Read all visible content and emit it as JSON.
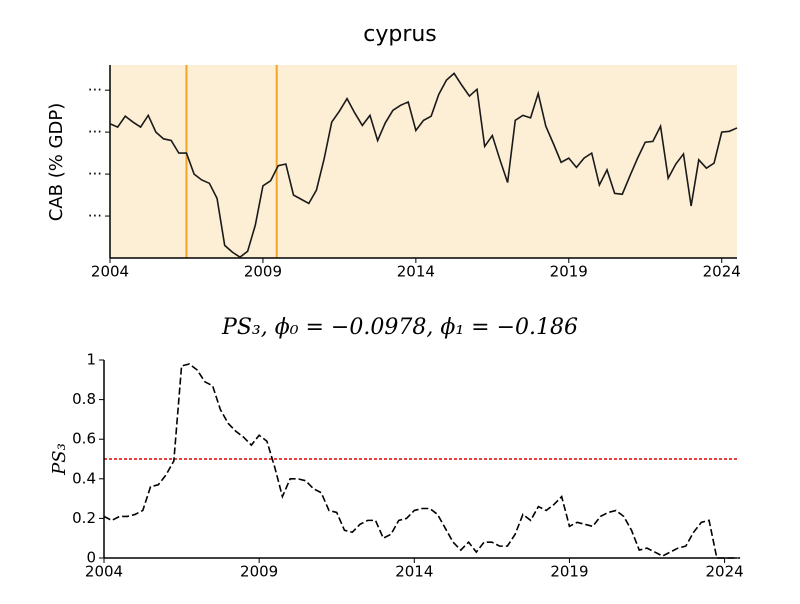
{
  "chart_data": [
    {
      "type": "line",
      "title": "cyprus",
      "ylabel": "CAB (% GDP)",
      "background": "#fdefd5",
      "x": [
        2004,
        2004.25,
        2004.5,
        2004.75,
        2005,
        2005.25,
        2005.5,
        2005.75,
        2006,
        2006.25,
        2006.5,
        2006.75,
        2007,
        2007.25,
        2007.5,
        2007.75,
        2008,
        2008.25,
        2008.5,
        2008.75,
        2009,
        2009.25,
        2009.5,
        2009.75,
        2010,
        2010.25,
        2010.5,
        2010.75,
        2011,
        2011.25,
        2011.5,
        2011.75,
        2012,
        2012.25,
        2012.5,
        2012.75,
        2013,
        2013.25,
        2013.5,
        2013.75,
        2014,
        2014.25,
        2014.5,
        2014.75,
        2015,
        2015.25,
        2015.5,
        2015.75,
        2016,
        2016.25,
        2016.5,
        2016.75,
        2017,
        2017.25,
        2017.5,
        2017.75,
        2018,
        2018.25,
        2018.5,
        2018.75,
        2019,
        2019.25,
        2019.5,
        2019.75,
        2020,
        2020.25,
        2020.5,
        2020.75,
        2021,
        2021.25,
        2021.5,
        2021.75,
        2022,
        2022.25,
        2022.5,
        2022.75,
        2023,
        2023.25,
        2023.5,
        2023.75,
        2024,
        2024.25,
        2024.5
      ],
      "series": [
        {
          "color": "#1a1a1a",
          "linestyle": "solid",
          "values": [
            -4.0,
            -4.4,
            -3.1,
            -3.8,
            -4.4,
            -3.0,
            -5.0,
            -5.8,
            -6.0,
            -7.5,
            -7.5,
            -10.0,
            -10.7,
            -11.1,
            -12.9,
            -18.5,
            -19.3,
            -19.9,
            -19.2,
            -16.1,
            -11.4,
            -10.8,
            -9.0,
            -8.8,
            -12.5,
            -13.0,
            -13.5,
            -11.9,
            -8.2,
            -3.8,
            -2.5,
            -1.0,
            -2.7,
            -4.2,
            -3.0,
            -6.0,
            -3.9,
            -2.4,
            -1.8,
            -1.4,
            -4.8,
            -3.6,
            -3.1,
            -0.5,
            1.2,
            2.0,
            0.6,
            -0.7,
            0.1,
            -6.7,
            -5.4,
            -8.3,
            -11.0,
            -3.6,
            -3.0,
            -3.3,
            -0.4,
            -4.3,
            -6.4,
            -8.6,
            -8.1,
            -9.2,
            -8.1,
            -7.5,
            -11.3,
            -9.5,
            -12.3,
            -12.4,
            -10.2,
            -8.1,
            -6.2,
            -6.1,
            -4.3,
            -10.5,
            -8.8,
            -7.6,
            -13.8,
            -8.3,
            -9.3,
            -8.7,
            -5.0,
            -4.9,
            -4.5
          ]
        }
      ],
      "vlines": [
        2006.5,
        2009.45
      ],
      "vline_color": "#f2a524",
      "xlim": [
        2004,
        2024.5
      ],
      "xticks": [
        2004,
        2009,
        2014,
        2019,
        2024
      ],
      "ylim": [
        -20,
        3
      ],
      "yticks": [
        {
          "value": -15,
          "label": "..."
        },
        {
          "value": -10,
          "label": "..."
        },
        {
          "value": -5,
          "label": "..."
        },
        {
          "value": 0,
          "label": "..."
        }
      ]
    },
    {
      "type": "line",
      "title": "PS₃, ϕ₀ = −0.0978, ϕ₁ = −0.186",
      "ylabel": "PS₃",
      "background": "#ffffff",
      "x": [
        2004,
        2004.25,
        2004.5,
        2004.75,
        2005,
        2005.25,
        2005.5,
        2005.75,
        2006,
        2006.25,
        2006.5,
        2006.75,
        2007,
        2007.25,
        2007.5,
        2007.75,
        2008,
        2008.25,
        2008.5,
        2008.75,
        2009,
        2009.25,
        2009.5,
        2009.75,
        2010,
        2010.25,
        2010.5,
        2010.75,
        2011,
        2011.25,
        2011.5,
        2011.75,
        2012,
        2012.25,
        2012.5,
        2012.75,
        2013,
        2013.25,
        2013.5,
        2013.75,
        2014,
        2014.25,
        2014.5,
        2014.75,
        2015,
        2015.25,
        2015.5,
        2015.75,
        2016,
        2016.25,
        2016.5,
        2016.75,
        2017,
        2017.25,
        2017.5,
        2017.75,
        2018,
        2018.25,
        2018.5,
        2018.75,
        2019,
        2019.25,
        2019.5,
        2019.75,
        2020,
        2020.25,
        2020.5,
        2020.75,
        2021,
        2021.25,
        2021.5,
        2021.75,
        2022,
        2022.25,
        2022.5,
        2022.75,
        2023,
        2023.25,
        2023.5,
        2023.75,
        2024,
        2024.25,
        2024.5
      ],
      "series": [
        {
          "color": "#000000",
          "linestyle": "dashed",
          "values": [
            0.21,
            0.19,
            0.21,
            0.21,
            0.22,
            0.24,
            0.36,
            0.37,
            0.42,
            0.49,
            0.97,
            0.98,
            0.95,
            0.89,
            0.87,
            0.75,
            0.68,
            0.64,
            0.61,
            0.57,
            0.62,
            0.59,
            0.46,
            0.31,
            0.4,
            0.4,
            0.39,
            0.35,
            0.33,
            0.24,
            0.23,
            0.14,
            0.13,
            0.17,
            0.19,
            0.19,
            0.1,
            0.12,
            0.19,
            0.2,
            0.24,
            0.25,
            0.25,
            0.22,
            0.15,
            0.08,
            0.04,
            0.08,
            0.03,
            0.08,
            0.08,
            0.06,
            0.06,
            0.12,
            0.22,
            0.19,
            0.26,
            0.24,
            0.27,
            0.31,
            0.16,
            0.18,
            0.17,
            0.16,
            0.21,
            0.23,
            0.24,
            0.21,
            0.14,
            0.04,
            0.05,
            0.03,
            0.01,
            0.03,
            0.05,
            0.06,
            0.13,
            0.18,
            0.19,
            0,
            0,
            0,
            0
          ]
        }
      ],
      "hline": 0.5,
      "hline_color": "#e00000",
      "xlim": [
        2004,
        2024.4
      ],
      "xticks": [
        2004,
        2009,
        2014,
        2019,
        2024
      ],
      "ylim": [
        0,
        1
      ],
      "yticks": [
        0,
        0.2,
        0.4,
        0.6,
        0.8,
        1
      ]
    }
  ]
}
